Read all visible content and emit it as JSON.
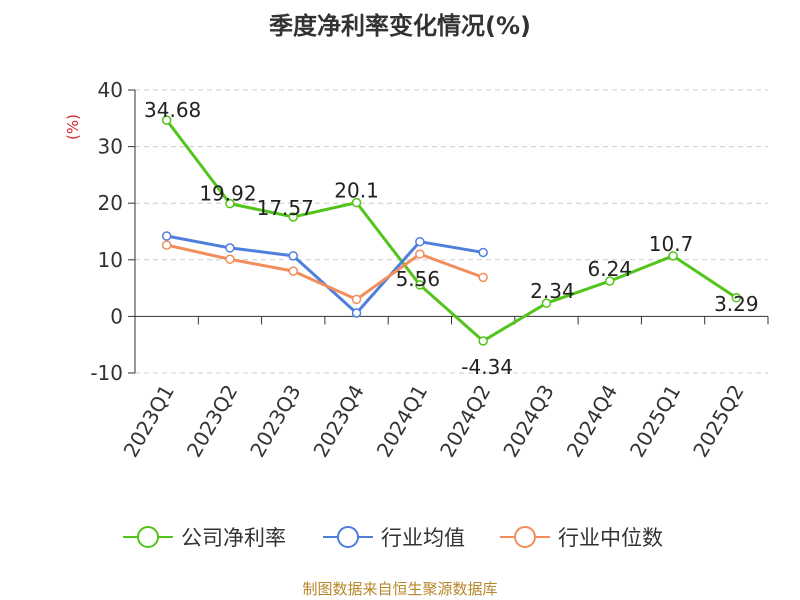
{
  "title": "季度净利率变化情况(%)",
  "footer": "制图数据来自恒生聚源数据库",
  "chart_data": {
    "type": "line",
    "ylabel": "(%)",
    "ylim": [
      -10,
      40
    ],
    "yticks": [
      "-10",
      "0",
      "10",
      "20",
      "30",
      "40"
    ],
    "grid": true,
    "legend_position": "bottom",
    "categories": [
      "2023Q1",
      "2023Q2",
      "2023Q3",
      "2023Q4",
      "2024Q1",
      "2024Q2",
      "2024Q3",
      "2024Q4",
      "2025Q1",
      "2025Q2"
    ],
    "series": [
      {
        "name": "公司净利率",
        "color": "#52c41a",
        "values": [
          34.68,
          19.92,
          17.57,
          20.1,
          5.56,
          -4.34,
          2.34,
          6.24,
          10.7,
          3.29
        ],
        "labels": [
          "34.68",
          "19.92",
          "17.57",
          "20.1",
          "5.56",
          "-4.34",
          "2.34",
          "6.24",
          "10.7",
          "3.29"
        ]
      },
      {
        "name": "行业均值",
        "color": "#4f7fdc",
        "values": [
          14.2,
          12.1,
          10.7,
          0.6,
          13.2,
          11.3,
          null,
          null,
          null,
          null
        ]
      },
      {
        "name": "行业中位数",
        "color": "#f28d5c",
        "values": [
          12.6,
          10.1,
          8.0,
          3.0,
          11.0,
          6.9,
          null,
          null,
          null,
          null
        ]
      }
    ]
  }
}
